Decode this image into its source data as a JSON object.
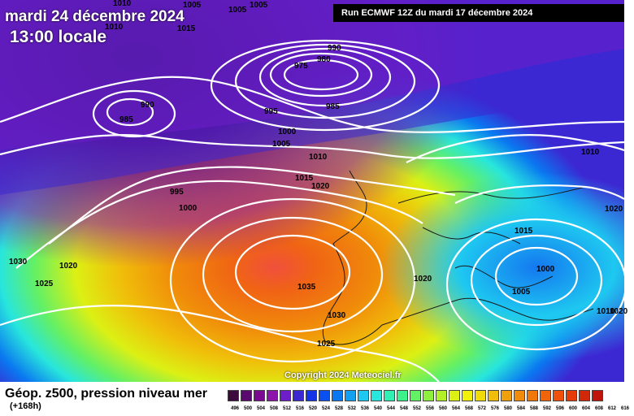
{
  "header": {
    "date": "mardi 24 décembre 2024",
    "time": "13:00 locale",
    "run": "Run ECMWF 12Z du mardi 17 décembre 2024"
  },
  "footer": {
    "title": "Géop. z500, pression niveau mer",
    "subtitle": "(+168h)",
    "copyright": "Copyright 2024 Meteociel.fr"
  },
  "legend": {
    "colors": [
      "#3c0a3c",
      "#5a0a6e",
      "#7a0a90",
      "#8c14aa",
      "#6e1ec8",
      "#3c28d2",
      "#1432e6",
      "#0a50f0",
      "#0a78f0",
      "#14a0f0",
      "#1ec8f0",
      "#28e6dc",
      "#32f0b4",
      "#3cf08c",
      "#64f064",
      "#8cf03c",
      "#b4f028",
      "#dcf014",
      "#f0f00a",
      "#f0dc0a",
      "#f0be0a",
      "#f0a00a",
      "#f08c0a",
      "#f0780a",
      "#f0640a",
      "#f0500a",
      "#e63c0a",
      "#d2280a",
      "#be140a",
      "#aa0a0a",
      "#8c0a0a",
      "#6e0a0a",
      "#460a0a",
      "#1e0a0a"
    ],
    "ticks": [
      "496",
      "500",
      "504",
      "508",
      "512",
      "516",
      "520",
      "524",
      "528",
      "532",
      "536",
      "540",
      "544",
      "548",
      "552",
      "556",
      "560",
      "564",
      "568",
      "572",
      "576",
      "580",
      "584",
      "588",
      "592",
      "596",
      "600",
      "604",
      "608",
      "612",
      "616"
    ]
  },
  "isobars": [
    {
      "label": "1010",
      "side": "top-left"
    },
    {
      "label": "1005",
      "side": "top"
    },
    {
      "label": "1005",
      "side": "top"
    },
    {
      "label": "1005",
      "side": "top"
    },
    {
      "label": "1010",
      "side": "left"
    },
    {
      "label": "1015",
      "side": "left"
    },
    {
      "label": "990",
      "side": "top"
    },
    {
      "label": "980",
      "side": "top"
    },
    {
      "label": "975",
      "side": "top"
    },
    {
      "label": "985",
      "side": "center"
    },
    {
      "label": "995",
      "side": "center"
    },
    {
      "label": "990",
      "side": "left"
    },
    {
      "label": "985",
      "side": "left"
    },
    {
      "label": "1000",
      "side": "center"
    },
    {
      "label": "1005",
      "side": "center"
    },
    {
      "label": "1010",
      "side": "center"
    },
    {
      "label": "1015",
      "side": "center"
    },
    {
      "label": "1020",
      "side": "center"
    },
    {
      "label": "995",
      "side": "left"
    },
    {
      "label": "1000",
      "side": "left"
    },
    {
      "label": "1030",
      "side": "left"
    },
    {
      "label": "1020",
      "side": "left"
    },
    {
      "label": "1025",
      "side": "left"
    },
    {
      "label": "1035",
      "side": "center"
    },
    {
      "label": "1030",
      "side": "center"
    },
    {
      "label": "1025",
      "side": "bottom"
    },
    {
      "label": "1020",
      "side": "center"
    },
    {
      "label": "1015",
      "side": "right"
    },
    {
      "label": "1000",
      "side": "right"
    },
    {
      "label": "1005",
      "side": "right"
    },
    {
      "label": "1010",
      "side": "right"
    },
    {
      "label": "1020",
      "side": "right"
    },
    {
      "label": "1010",
      "side": "right"
    },
    {
      "label": "1020",
      "side": "right"
    }
  ]
}
